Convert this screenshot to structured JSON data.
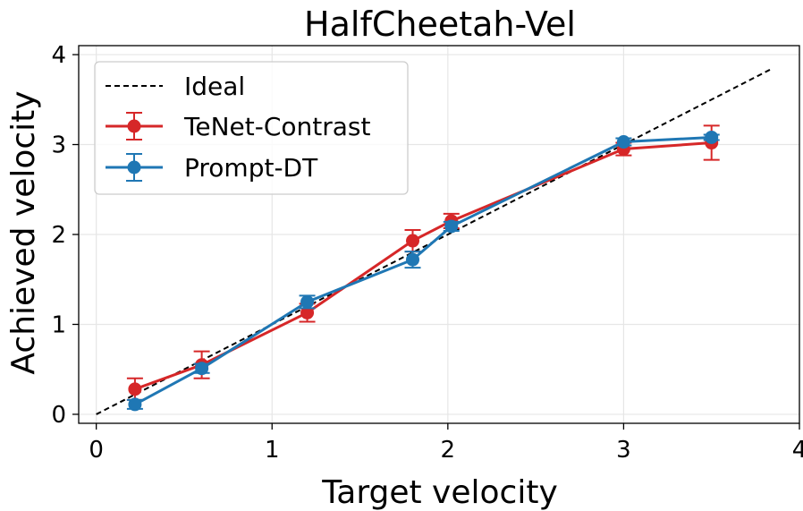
{
  "chart_data": {
    "type": "line",
    "title": "HalfCheetah-Vel",
    "xlabel": "Target velocity",
    "ylabel": "Achieved velocity",
    "xlim": [
      -0.1,
      4.0
    ],
    "ylim": [
      -0.1,
      4.1
    ],
    "xticks": [
      0,
      1,
      2,
      3,
      4
    ],
    "yticks": [
      0,
      1,
      2,
      3,
      4
    ],
    "grid": true,
    "legend_position": "upper-left",
    "ideal": {
      "name": "Ideal",
      "x": [
        0,
        3.85
      ],
      "y": [
        0,
        3.85
      ],
      "color": "#000000"
    },
    "series": [
      {
        "name": "TeNet-Contrast",
        "color": "#d62728",
        "x": [
          0.22,
          0.6,
          1.2,
          1.8,
          2.02,
          3.0,
          3.5
        ],
        "y": [
          0.28,
          0.55,
          1.13,
          1.93,
          2.15,
          2.95,
          3.02
        ],
        "err": [
          0.12,
          0.15,
          0.1,
          0.12,
          0.08,
          0.07,
          0.19
        ]
      },
      {
        "name": "Prompt-DT",
        "color": "#1f77b4",
        "x": [
          0.22,
          0.6,
          1.2,
          1.8,
          2.02,
          3.0,
          3.5
        ],
        "y": [
          0.11,
          0.51,
          1.25,
          1.72,
          2.09,
          3.03,
          3.08
        ],
        "err": [
          0.05,
          0.05,
          0.07,
          0.09,
          0.05,
          0.04,
          0.03
        ]
      }
    ]
  }
}
